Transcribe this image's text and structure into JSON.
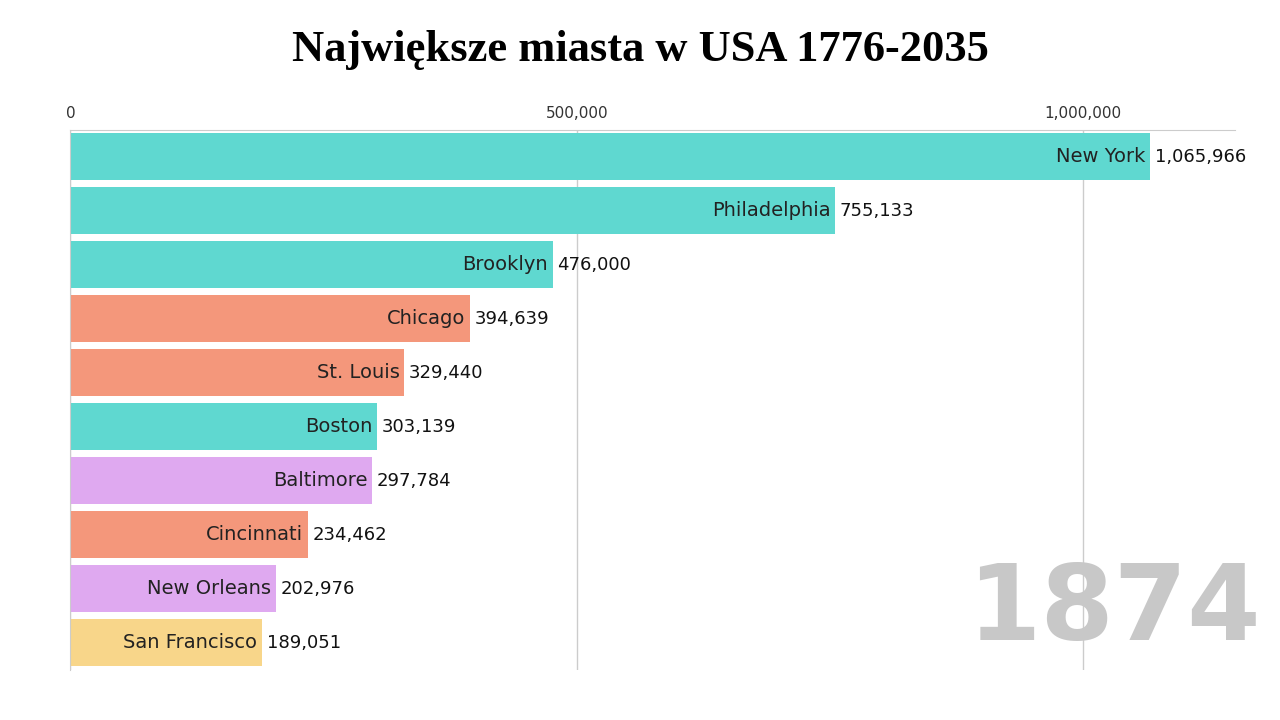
{
  "chart_data": {
    "type": "bar",
    "orientation": "horizontal",
    "title": "Największe miasta w USA 1776-2035",
    "categories": [
      "New York",
      "Philadelphia",
      "Brooklyn",
      "Chicago",
      "St. Louis",
      "Boston",
      "Baltimore",
      "Cincinnati",
      "New Orleans",
      "San Francisco"
    ],
    "values": [
      1065966,
      755133,
      476000,
      394639,
      329440,
      303139,
      297784,
      234462,
      202976,
      189051
    ],
    "value_labels": [
      "1,065,966",
      "755,133",
      "476,000",
      "394,639",
      "329,440",
      "303,139",
      "297,784",
      "234,462",
      "202,976",
      "189,051"
    ],
    "colors": [
      "#5fd8d0",
      "#5fd8d0",
      "#5fd8d0",
      "#f4977b",
      "#f4977b",
      "#5fd8d0",
      "#dfa9f0",
      "#f4977b",
      "#dfa9f0",
      "#f8d68a"
    ],
    "xlim": [
      0,
      1150000
    ],
    "xticks": [
      0,
      {
        "value": 500000,
        "label": "500,000"
      },
      {
        "value": 1000000,
        "label": "1,000,000"
      }
    ],
    "grid": true,
    "data_labels": true,
    "tick_labels": "x",
    "annotations": [
      "1874"
    ]
  }
}
